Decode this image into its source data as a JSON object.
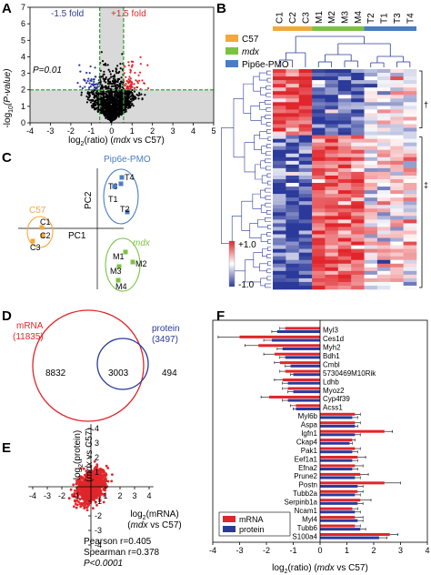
{
  "panels": {
    "A": {
      "letter": "A",
      "ylabel_pre": "-log",
      "ylabel_sub": "10",
      "ylabel_post": "(P-value)",
      "xlabel_pre": "log",
      "xlabel_sub": "2",
      "xlabel_post": "(ratio) (",
      "xlabel_ital": "mdx",
      "xlabel_end": " vs C57)",
      "down_label": "-1.5 fold",
      "up_label": "+1.5 fold",
      "p_label": "P=0.01",
      "colors": {
        "up": "#e0262b",
        "down": "#2b3a9a",
        "ns": "#000000",
        "threshold": "#3aa33a",
        "shade": "#d9d9d9"
      }
    },
    "B": {
      "letter": "B",
      "columns": [
        "C1",
        "C2",
        "C3",
        "M1",
        "M2",
        "M3",
        "M4",
        "T2",
        "T1",
        "T3",
        "T4"
      ],
      "groups": [
        {
          "name": "C57",
          "color": "#f2a93b"
        },
        {
          "name": "mdx",
          "color": "#7cc242"
        },
        {
          "name": "Pip6e-PMO",
          "color": "#4a7dc4"
        }
      ],
      "cluster_marks": [
        "†",
        "‡"
      ],
      "scale_high": "+1.0",
      "scale_low": "-1.0"
    },
    "C": {
      "letter": "C",
      "pc1": "PC1",
      "pc2": "PC2",
      "groups": [
        {
          "name": "C57",
          "color": "#f2a93b",
          "points": [
            "C1",
            "C2",
            "C3"
          ]
        },
        {
          "name": "mdx",
          "color": "#7cc242",
          "points": [
            "M1",
            "M2",
            "M3",
            "M4"
          ]
        },
        {
          "name": "Pip6e-PMO",
          "color": "#4a7dc4",
          "points": [
            "T1",
            "T2",
            "T3",
            "T4"
          ]
        }
      ]
    },
    "D": {
      "letter": "D",
      "mrna_label": "mRNA",
      "mrna_count": "(11835)",
      "protein_label": "protein",
      "protein_count": "(3497)",
      "only_mrna": "8832",
      "both": "3003",
      "only_protein": "494"
    },
    "E": {
      "letter": "E",
      "ylab1": "log",
      "ylab1_sub": "2",
      "ylab1_post": "(protein)",
      "ylab2_pre": "(",
      "ylab2_ital": "mdx",
      "ylab2_post": " vs C57)",
      "xlab1": "log",
      "xlab1_sub": "2",
      "xlab1_post": "(mRNA)",
      "xlab2_pre": "(",
      "xlab2_ital": "mdx",
      "xlab2_post": " vs C57)",
      "pearson": "Pearson r=0.405",
      "spearman": "Spearman r=0.378",
      "pval": "P<0.0001",
      "x_ticks": [
        "-4",
        "-3",
        "-2",
        "-1",
        "1",
        "2",
        "3",
        "4"
      ],
      "y_ticks": [
        "4",
        "3",
        "2",
        "1",
        "-1",
        "-2",
        "-3",
        "-4"
      ]
    },
    "F": {
      "letter": "F",
      "legend_mrna": "mRNA",
      "legend_protein": "protein",
      "xlabel_pre": "log",
      "xlabel_sub": "2",
      "xlabel_post": "(ratio) (",
      "xlabel_ital": "mdx",
      "xlabel_end": " vs C57)"
    }
  },
  "chart_data": [
    {
      "type": "scatter",
      "panel": "A",
      "xlabel": "log2(ratio) (mdx vs C57)",
      "ylabel": "-log10(P-value)",
      "xlim": [
        -4,
        5
      ],
      "ylim": [
        0,
        7
      ],
      "x_ticks": [
        "-4",
        "-3",
        "-2",
        "-1",
        "0",
        "1",
        "2",
        "3",
        "4",
        "5"
      ],
      "y_ticks": [
        "0",
        "1",
        "2",
        "3",
        "4",
        "5",
        "6",
        "7"
      ],
      "fold_thresholds": [
        -0.585,
        0.585
      ],
      "p_threshold": 2
    },
    {
      "type": "heatmap",
      "panel": "B",
      "columns": [
        "C1",
        "C2",
        "C3",
        "M1",
        "M2",
        "M3",
        "M4",
        "T2",
        "T1",
        "T3",
        "T4"
      ],
      "color_scale": {
        "min": -1.0,
        "max": 1.0,
        "low": "#2b3a9a",
        "mid": "#ffffff",
        "high": "#e0262b"
      }
    },
    {
      "type": "scatter",
      "panel": "C",
      "xlabel": "PC1",
      "ylabel": "PC2"
    },
    {
      "type": "scatter",
      "panel": "E",
      "xlabel": "log2(mRNA) (mdx vs C57)",
      "ylabel": "log2(protein) (mdx vs C57)",
      "xlim": [
        -4,
        4
      ],
      "ylim": [
        -4,
        4
      ],
      "pearson_r": 0.405,
      "spearman_r": 0.378
    },
    {
      "type": "bar",
      "panel": "F",
      "orientation": "horizontal",
      "xlabel": "log2(ratio) (mdx vs C57)",
      "xlim": [
        -4,
        4
      ],
      "x_ticks": [
        "-4",
        "-3",
        "-2",
        "-1",
        "0",
        "1",
        "2",
        "3",
        "4"
      ],
      "categories": [
        "Myl3",
        "Ces1d",
        "Myh2",
        "Bdh1",
        "Cmbl",
        "5730469M10Rik",
        "Ldhb",
        "Myoz2",
        "Cyp4f39",
        "Acss1",
        "Myl6b",
        "Aspa",
        "Igfn1",
        "Ckap4",
        "Pak1",
        "Eef1a1",
        "Efna2",
        "Prune2",
        "Postn",
        "Tubb2a",
        "Serpinb1a",
        "Ncam1",
        "Myl4",
        "Tubb6",
        "S100a4"
      ],
      "series": [
        {
          "name": "mRNA",
          "color": "#e0262b",
          "values": [
            -1.3,
            -3.0,
            -2.3,
            -1.7,
            -1.5,
            -1.3,
            -1.4,
            -1.2,
            -1.9,
            -0.9,
            1.3,
            1.3,
            2.4,
            1.2,
            1.3,
            1.4,
            1.3,
            1.5,
            2.4,
            1.4,
            1.5,
            1.2,
            1.3,
            1.3,
            2.6
          ],
          "errors": [
            0.2,
            0.8,
            0.5,
            0.4,
            0.2,
            0.2,
            0.3,
            0.2,
            0.3,
            0.2,
            0.2,
            0.2,
            0.3,
            0.1,
            0.2,
            0.3,
            0.3,
            0.3,
            0.6,
            0.2,
            0.4,
            0.2,
            0.3,
            0.2,
            0.3
          ]
        },
        {
          "name": "protein",
          "color": "#2b3a9a",
          "values": [
            -1.6,
            -1.8,
            -1.4,
            -1.3,
            -1.1,
            -1.0,
            -1.2,
            -1.0,
            -1.2,
            -0.9,
            1.2,
            1.3,
            1.3,
            1.1,
            1.2,
            1.2,
            1.2,
            1.3,
            1.4,
            1.3,
            1.4,
            1.3,
            1.4,
            1.5,
            2.2
          ],
          "errors": [
            0.2,
            0.3,
            0.2,
            0.2,
            0.2,
            0.1,
            0.2,
            0.2,
            0.2,
            0.1,
            0.2,
            0.1,
            0.2,
            0.1,
            0.2,
            0.2,
            0.2,
            0.2,
            0.2,
            0.2,
            0.2,
            0.2,
            0.2,
            0.2,
            0.3
          ]
        }
      ]
    }
  ]
}
